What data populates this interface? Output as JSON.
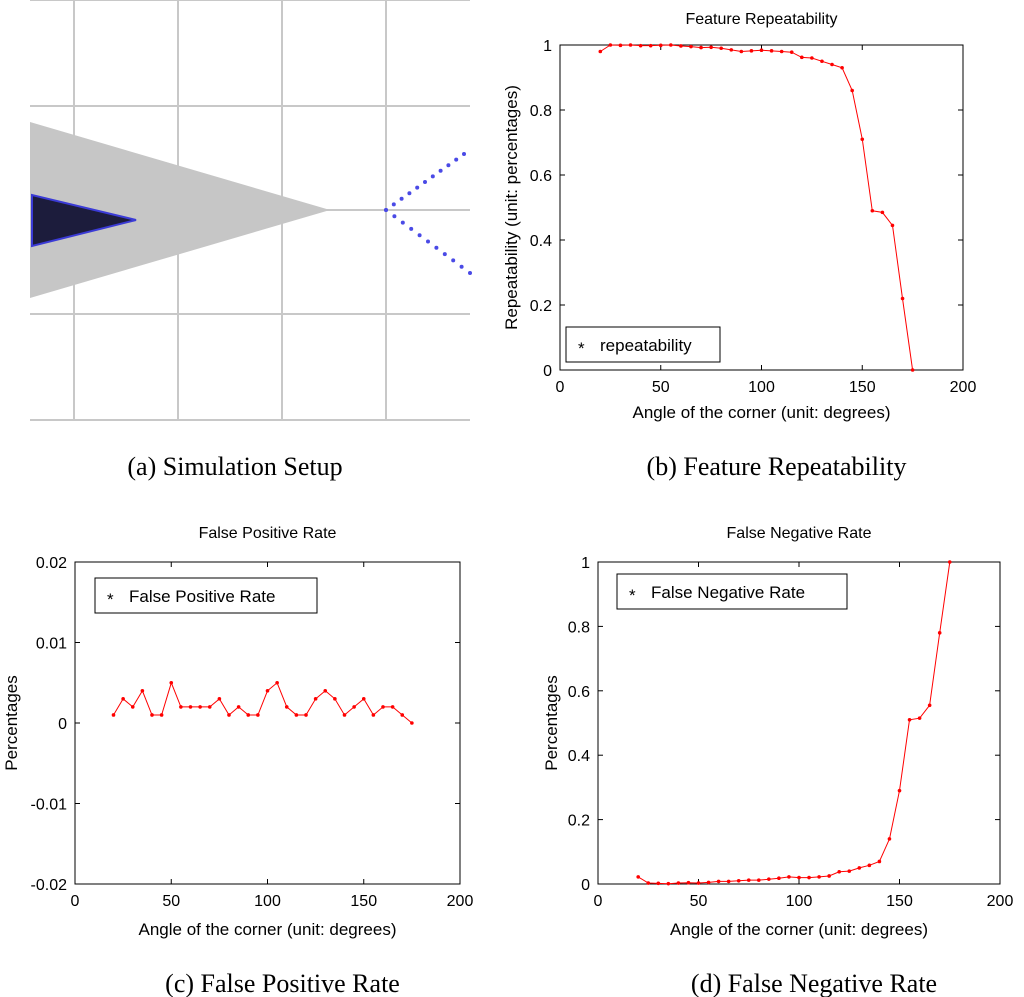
{
  "setup": {
    "caption": "(a)  Simulation Setup",
    "colors": {
      "grid": "#c8c8c8",
      "sensor_cone": "#c6c6c6",
      "robot": "#1c1c3c",
      "robot_edge": "#3b3bd6",
      "corner_points": "#4a4ae6"
    }
  },
  "chart_data": [
    {
      "type": "line",
      "title": "Feature Repeatability",
      "caption": "(b)  Feature Repeatability",
      "xlabel": "Angle of the corner (unit: degrees)",
      "ylabel": "Repeatability (unit: percentages)",
      "xlim": [
        0,
        200
      ],
      "ylim": [
        0,
        1
      ],
      "xticks": [
        0,
        50,
        100,
        150,
        200
      ],
      "yticks": [
        0,
        0.2,
        0.4,
        0.6,
        0.8,
        1
      ],
      "xtick_labels": [
        "0",
        "50",
        "100",
        "150",
        "200"
      ],
      "ytick_labels": [
        "0",
        "0.2",
        "0.4",
        "0.6",
        "0.8",
        "1"
      ],
      "legend_position": "bottom-left",
      "grid": false,
      "series": [
        {
          "name": "repeatability",
          "color": "#ff0000",
          "x": [
            20,
            25,
            30,
            35,
            40,
            45,
            50,
            55,
            60,
            65,
            70,
            75,
            80,
            85,
            90,
            95,
            100,
            105,
            110,
            115,
            120,
            125,
            130,
            135,
            140,
            145,
            150,
            155,
            160,
            165,
            170,
            175
          ],
          "y": [
            0.98,
            1.0,
            0.999,
            1.0,
            0.998,
            0.998,
            0.999,
            1.0,
            0.997,
            0.995,
            0.992,
            0.993,
            0.99,
            0.985,
            0.98,
            0.982,
            0.984,
            0.982,
            0.98,
            0.978,
            0.962,
            0.96,
            0.95,
            0.94,
            0.93,
            0.86,
            0.71,
            0.49,
            0.485,
            0.445,
            0.22,
            0.0
          ]
        }
      ]
    },
    {
      "type": "line",
      "title": "False Positive Rate",
      "caption": "(c)  False Positive Rate",
      "xlabel": "Angle of the corner (unit: degrees)",
      "ylabel": "Percentages",
      "xlim": [
        0,
        200
      ],
      "ylim": [
        -0.02,
        0.02
      ],
      "xticks": [
        0,
        50,
        100,
        150,
        200
      ],
      "yticks": [
        -0.02,
        -0.01,
        0,
        0.01,
        0.02
      ],
      "xtick_labels": [
        "0",
        "50",
        "100",
        "150",
        "200"
      ],
      "ytick_labels": [
        "-0.02",
        "-0.01",
        "0",
        "0.01",
        "0.02"
      ],
      "legend_position": "top-left",
      "grid": false,
      "series": [
        {
          "name": "False Positive Rate",
          "color": "#ff0000",
          "x": [
            20,
            25,
            30,
            35,
            40,
            45,
            50,
            55,
            60,
            65,
            70,
            75,
            80,
            85,
            90,
            95,
            100,
            105,
            110,
            115,
            120,
            125,
            130,
            135,
            140,
            145,
            150,
            155,
            160,
            165,
            170,
            175
          ],
          "y": [
            0.001,
            0.003,
            0.002,
            0.004,
            0.001,
            0.001,
            0.005,
            0.002,
            0.002,
            0.002,
            0.002,
            0.003,
            0.001,
            0.002,
            0.001,
            0.001,
            0.004,
            0.005,
            0.002,
            0.001,
            0.001,
            0.003,
            0.004,
            0.003,
            0.001,
            0.002,
            0.003,
            0.001,
            0.002,
            0.002,
            0.001,
            0.0
          ]
        }
      ]
    },
    {
      "type": "line",
      "title": "False Negative Rate",
      "caption": "(d)  False Negative Rate",
      "xlabel": "Angle of the corner (unit: degrees)",
      "ylabel": "Percentages",
      "xlim": [
        0,
        200
      ],
      "ylim": [
        0,
        1
      ],
      "xticks": [
        0,
        50,
        100,
        150,
        200
      ],
      "yticks": [
        0,
        0.2,
        0.4,
        0.6,
        0.8,
        1
      ],
      "xtick_labels": [
        "0",
        "50",
        "100",
        "150",
        "200"
      ],
      "ytick_labels": [
        "0",
        "0.2",
        "0.4",
        "0.6",
        "0.8",
        "1"
      ],
      "legend_position": "top-left",
      "grid": false,
      "series": [
        {
          "name": "False Negative Rate",
          "color": "#ff0000",
          "x": [
            20,
            25,
            30,
            35,
            40,
            45,
            50,
            55,
            60,
            65,
            70,
            75,
            80,
            85,
            90,
            95,
            100,
            105,
            110,
            115,
            120,
            125,
            130,
            135,
            140,
            145,
            150,
            155,
            160,
            165,
            170,
            175
          ],
          "y": [
            0.022,
            0.003,
            0.002,
            0.001,
            0.003,
            0.004,
            0.003,
            0.005,
            0.008,
            0.008,
            0.01,
            0.012,
            0.012,
            0.015,
            0.018,
            0.022,
            0.02,
            0.02,
            0.022,
            0.025,
            0.038,
            0.04,
            0.05,
            0.058,
            0.07,
            0.14,
            0.29,
            0.51,
            0.515,
            0.555,
            0.78,
            1.0
          ]
        }
      ]
    }
  ]
}
